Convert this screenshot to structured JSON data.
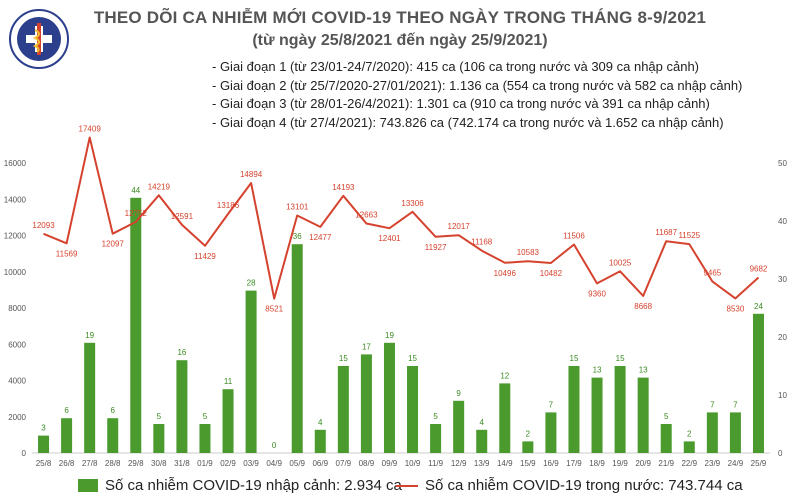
{
  "header": {
    "logo_text": "BỘ Y TẾ",
    "logo_subtext": "MINISTRY OF HEALTH",
    "title": "THEO DÕI CA NHIỄM MỚI COVID-19 THEO NGÀY TRONG THÁNG 8-9/2021",
    "subtitle": "(từ ngày 25/8/2021 đến ngày 25/9/2021)"
  },
  "phases": [
    "- Giai đoạn 1 (từ 23/01-24/7/2020): 415 ca (106 ca trong nước và 309 ca nhập cảnh)",
    "- Giai đoạn 2 (từ 25/7/2020-27/01/2021): 1.136 ca (554 ca trong nước và 582 ca nhập cảnh)",
    "- Giai đoạn 3 (từ 28/01-26/4/2021): 1.301 ca (910 ca trong nước và 391 ca nhập cảnh)",
    "- Giai đoạn 4 (từ 27/4/2021): 743.826 ca (742.174 ca trong nước và 1.652 ca nhập cảnh)"
  ],
  "colors": {
    "bar": "#4a9a2e",
    "line": "#d5422e",
    "bar_label": "#3a8a22",
    "line_label": "#d5422e",
    "axis_text": "#555555",
    "title": "#555555"
  },
  "chart_data": {
    "type": "bar+line",
    "categories": [
      "25/8",
      "26/8",
      "27/8",
      "28/8",
      "29/8",
      "30/8",
      "31/8",
      "01/9",
      "02/9",
      "03/9",
      "04/9",
      "05/9",
      "06/9",
      "07/9",
      "08/9",
      "09/9",
      "10/9",
      "11/9",
      "12/9",
      "13/9",
      "14/9",
      "15/9",
      "16/9",
      "17/9",
      "18/9",
      "19/9",
      "20/9",
      "21/9",
      "22/9",
      "23/9",
      "24/9",
      "25/9"
    ],
    "series": [
      {
        "name": "Số ca nhiễm COVID-19 nhập cảnh: 2.934 ca",
        "type": "bar",
        "axis": "right",
        "values": [
          3,
          6,
          19,
          6,
          44,
          5,
          16,
          5,
          11,
          28,
          0,
          36,
          4,
          15,
          17,
          19,
          15,
          5,
          9,
          4,
          12,
          2,
          7,
          15,
          13,
          15,
          13,
          5,
          2,
          7,
          7,
          24
        ]
      },
      {
        "name": "Số ca nhiễm COVID-19 trong nước: 743.744 ca",
        "type": "line",
        "axis": "left",
        "values": [
          12093,
          11569,
          17409,
          12097,
          12752,
          14219,
          12591,
          11429,
          13186,
          14894,
          8521,
          13101,
          12477,
          14193,
          12663,
          12401,
          13306,
          11927,
          12017,
          11168,
          10496,
          10583,
          10482,
          11506,
          9360,
          10025,
          8668,
          11687,
          11525,
          9465,
          8530,
          9682
        ]
      }
    ],
    "left_axis": {
      "ylim": [
        0,
        16000
      ],
      "ticks": [
        0,
        2000,
        4000,
        6000,
        8000,
        10000,
        12000,
        14000,
        16000
      ]
    },
    "right_axis": {
      "ylim": [
        0,
        50
      ],
      "ticks": [
        0,
        10,
        20,
        30,
        40,
        50
      ]
    },
    "grid": false,
    "legend_position": "bottom"
  }
}
